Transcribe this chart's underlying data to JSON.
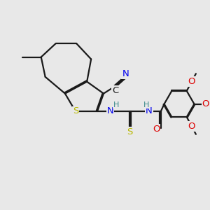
{
  "bg_color": "#e8e8e8",
  "bond_color": "#1a1a1a",
  "bw": 1.6,
  "dbo": 0.048,
  "colors": {
    "S": "#b8b800",
    "N": "#0000ee",
    "O": "#dd0000",
    "H": "#3a8a8a",
    "C": "#1a1a1a"
  },
  "afs": 9.5,
  "sfs": 8.0
}
